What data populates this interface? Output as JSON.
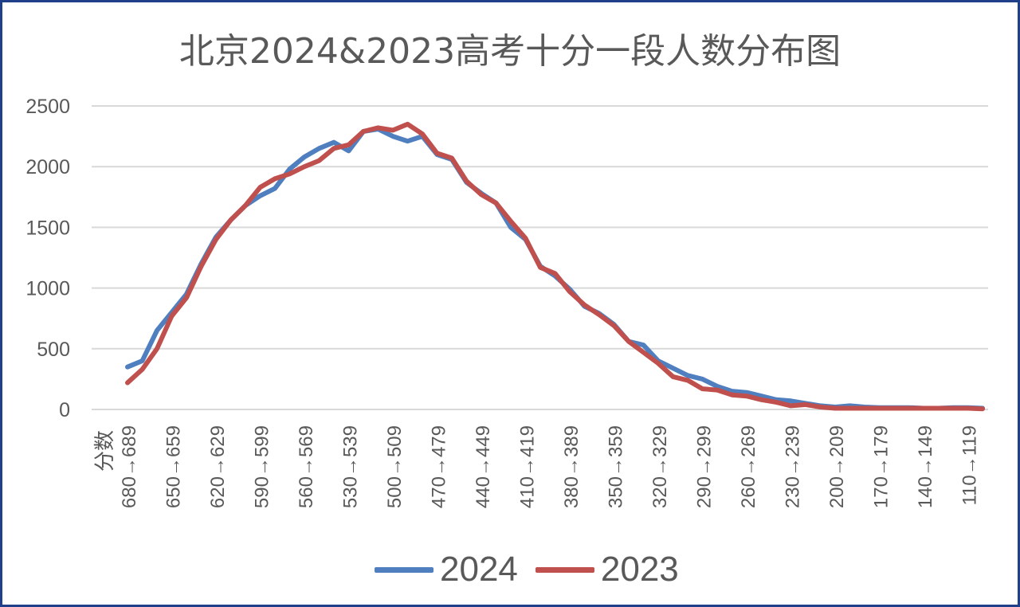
{
  "chart_data": {
    "type": "line",
    "title": "北京2024&2023高考十分一段人数分布图",
    "xlabel": "分数",
    "ylabel": "",
    "ylim": [
      0,
      2500
    ],
    "yticks": [
      0,
      500,
      1000,
      1500,
      2000,
      2500
    ],
    "grid": true,
    "legend_position": "bottom",
    "x_tick_labels": [
      "680→689",
      "650→659",
      "620→629",
      "590→599",
      "560→569",
      "530→539",
      "500→509",
      "470→479",
      "440→449",
      "410→419",
      "380→389",
      "350→359",
      "320→329",
      "290→299",
      "260→269",
      "230→239",
      "200→209",
      "170→179",
      "140→149",
      "110→119"
    ],
    "x": [
      680,
      670,
      660,
      650,
      640,
      630,
      620,
      610,
      600,
      590,
      580,
      570,
      560,
      550,
      540,
      530,
      520,
      510,
      500,
      490,
      480,
      470,
      460,
      450,
      440,
      430,
      420,
      410,
      400,
      390,
      380,
      370,
      360,
      350,
      340,
      330,
      320,
      310,
      300,
      290,
      280,
      270,
      260,
      250,
      240,
      230,
      220,
      210,
      200,
      190,
      180,
      170,
      160,
      150,
      140,
      130,
      120,
      110,
      100
    ],
    "series": [
      {
        "name": "2024",
        "color": "#4f7fbf",
        "values": [
          350,
          400,
          650,
          800,
          950,
          1200,
          1420,
          1560,
          1680,
          1760,
          1820,
          1980,
          2080,
          2150,
          2200,
          2130,
          2290,
          2310,
          2250,
          2210,
          2250,
          2100,
          2060,
          1870,
          1780,
          1700,
          1500,
          1400,
          1180,
          1100,
          990,
          850,
          790,
          700,
          560,
          530,
          400,
          340,
          280,
          250,
          190,
          150,
          140,
          110,
          80,
          70,
          50,
          30,
          20,
          30,
          20,
          15,
          15,
          15,
          10,
          10,
          15,
          15,
          10
        ]
      },
      {
        "name": "2023",
        "color": "#c0504d",
        "values": [
          220,
          330,
          500,
          770,
          920,
          1180,
          1400,
          1560,
          1680,
          1830,
          1900,
          1940,
          2000,
          2050,
          2150,
          2180,
          2290,
          2320,
          2300,
          2350,
          2270,
          2110,
          2070,
          1880,
          1770,
          1700,
          1550,
          1410,
          1170,
          1120,
          970,
          860,
          780,
          690,
          560,
          470,
          380,
          270,
          240,
          170,
          160,
          120,
          110,
          80,
          60,
          30,
          40,
          20,
          10,
          10,
          10,
          10,
          10,
          10,
          10,
          10,
          10,
          10,
          5
        ]
      }
    ]
  }
}
